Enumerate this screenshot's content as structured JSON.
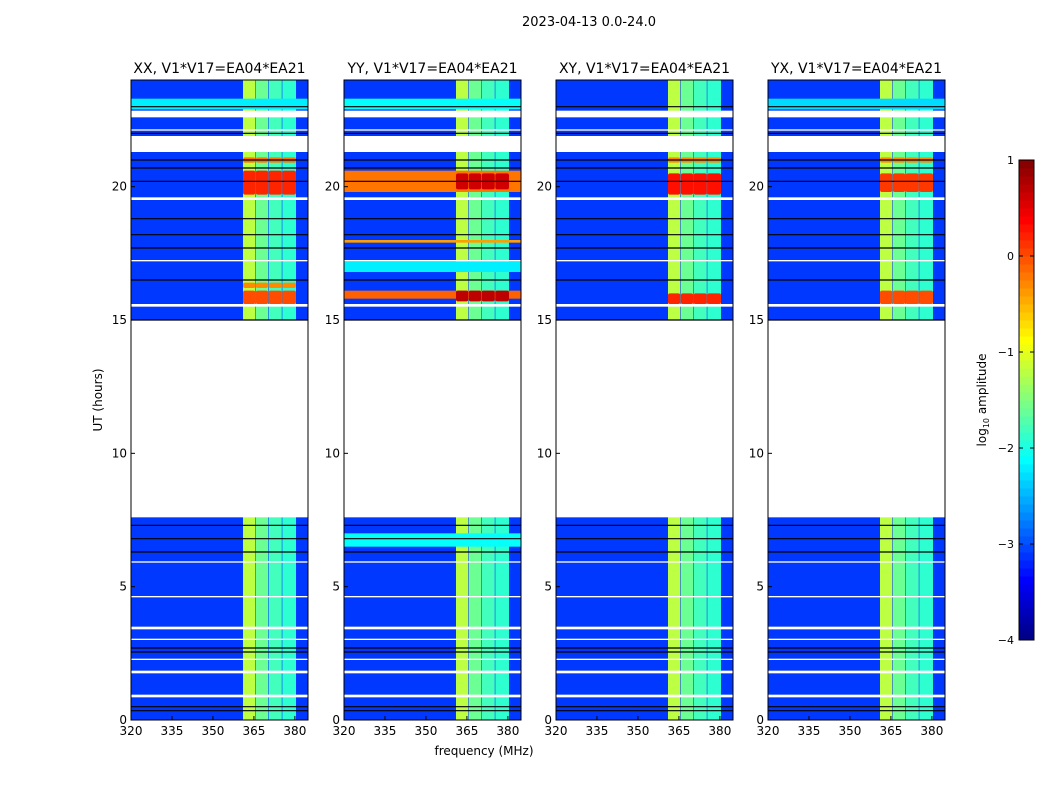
{
  "chart_data": {
    "type": "heatmap",
    "title": "2023-04-13 0.0-24.0",
    "xlabel": "frequency (MHz)",
    "ylabel": "UT (hours)",
    "xlim": [
      320,
      384.8
    ],
    "ylim": [
      0,
      24
    ],
    "xticks": [
      320,
      335,
      350,
      365,
      380
    ],
    "yticks": [
      0,
      5,
      10,
      15,
      20
    ],
    "colorbar": {
      "label": "log10 amplitude",
      "label_base": "log",
      "label_sub": "10",
      "label_rest": " amplitude",
      "range": [
        -4,
        1
      ],
      "ticks": [
        1,
        0,
        -1,
        -2,
        -3,
        -4
      ],
      "colormap": "jet"
    },
    "background_level": -3.1,
    "rfi_subbands": [
      {
        "f0": 361,
        "f1": 365.5,
        "level": -1.2
      },
      {
        "f0": 365.7,
        "f1": 370.2,
        "level": -1.6
      },
      {
        "f0": 370.4,
        "f1": 375.2,
        "level": -1.8
      },
      {
        "f0": 375.4,
        "f1": 380.4,
        "level": -1.9
      }
    ],
    "masked_ranges": [
      [
        7.6,
        15.0
      ],
      [
        21.3,
        21.9
      ],
      [
        22.6,
        22.85
      ],
      [
        0.85,
        0.95
      ],
      [
        1.75,
        1.85
      ],
      [
        2.25,
        2.3
      ],
      [
        3.4,
        3.5
      ],
      [
        5.9,
        5.95
      ],
      [
        19.5,
        19.6
      ],
      [
        17.2,
        17.25
      ],
      [
        15.5,
        15.6
      ],
      [
        22.1,
        22.15
      ],
      [
        4.6,
        4.65
      ],
      [
        3.0,
        3.05
      ]
    ],
    "flag_lines": [
      0.35,
      0.5,
      2.55,
      2.7,
      6.3,
      6.8,
      7.3,
      15.0,
      16.5,
      17.7,
      18.2,
      18.8,
      20.2,
      20.7,
      21.0,
      22.0,
      23.0
    ],
    "panels": [
      {
        "title": "XX, V1*V17=EA04*EA21",
        "bands": [
          [
            22.9,
            23.3,
            -2.2,
            320
          ],
          [
            19.7,
            20.6,
            0.2,
            361
          ],
          [
            15.6,
            16.1,
            0.0,
            361
          ],
          [
            20.9,
            21.1,
            -0.2,
            361
          ],
          [
            16.2,
            16.4,
            -0.3,
            361
          ]
        ]
      },
      {
        "title": "YY, V1*V17=EA04*EA21",
        "bands": [
          [
            22.9,
            23.3,
            -2.1,
            320
          ],
          [
            6.5,
            7.0,
            -2.1,
            320
          ],
          [
            19.8,
            20.6,
            -0.2,
            320
          ],
          [
            19.9,
            20.5,
            0.6,
            361
          ],
          [
            15.8,
            16.1,
            -0.1,
            320
          ],
          [
            15.7,
            16.1,
            0.7,
            361
          ],
          [
            17.9,
            18.0,
            -0.4,
            320
          ],
          [
            16.8,
            17.2,
            -2.2,
            320
          ]
        ]
      },
      {
        "title": "XY, V1*V17=EA04*EA21",
        "bands": [
          [
            19.7,
            20.5,
            0.3,
            361
          ],
          [
            15.6,
            16.0,
            0.2,
            361
          ],
          [
            20.9,
            21.1,
            -0.3,
            361
          ]
        ]
      },
      {
        "title": "YX, V1*V17=EA04*EA21",
        "bands": [
          [
            22.9,
            23.3,
            -2.3,
            320
          ],
          [
            19.8,
            20.5,
            0.1,
            361
          ],
          [
            15.6,
            16.1,
            0.0,
            361
          ],
          [
            20.9,
            21.1,
            -0.3,
            361
          ]
        ]
      }
    ]
  }
}
